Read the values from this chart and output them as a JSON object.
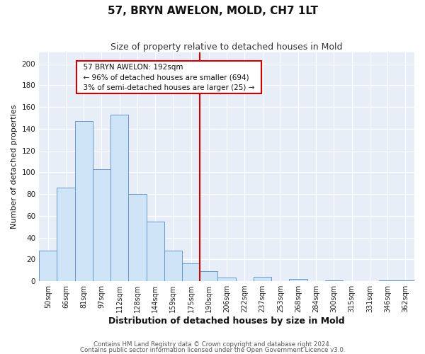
{
  "title": "57, BRYN AWELON, MOLD, CH7 1LT",
  "subtitle": "Size of property relative to detached houses in Mold",
  "xlabel": "Distribution of detached houses by size in Mold",
  "ylabel": "Number of detached properties",
  "bar_labels": [
    "50sqm",
    "66sqm",
    "81sqm",
    "97sqm",
    "112sqm",
    "128sqm",
    "144sqm",
    "159sqm",
    "175sqm",
    "190sqm",
    "206sqm",
    "222sqm",
    "237sqm",
    "253sqm",
    "268sqm",
    "284sqm",
    "300sqm",
    "315sqm",
    "331sqm",
    "346sqm",
    "362sqm"
  ],
  "bar_values": [
    28,
    86,
    147,
    103,
    153,
    80,
    55,
    28,
    16,
    9,
    3,
    0,
    4,
    0,
    2,
    0,
    1,
    0,
    0,
    1,
    1
  ],
  "bar_color": "#d0e4f7",
  "bar_edge_color": "#6699cc",
  "vline_color": "#cc0000",
  "annotation_title": "57 BRYN AWELON: 192sqm",
  "annotation_line1": "← 96% of detached houses are smaller (694)",
  "annotation_line2": "3% of semi-detached houses are larger (25) →",
  "annotation_box_facecolor": "#ffffff",
  "annotation_box_edgecolor": "#cc0000",
  "ylim": [
    0,
    210
  ],
  "yticks": [
    0,
    20,
    40,
    60,
    80,
    100,
    120,
    140,
    160,
    180,
    200
  ],
  "fig_bg": "#ffffff",
  "plot_bg": "#e8eef8",
  "grid_color": "#ffffff",
  "title_fontsize": 11,
  "subtitle_fontsize": 9,
  "xlabel_fontsize": 9,
  "ylabel_fontsize": 8,
  "footer1": "Contains HM Land Registry data © Crown copyright and database right 2024.",
  "footer2": "Contains public sector information licensed under the Open Government Licence v3.0."
}
